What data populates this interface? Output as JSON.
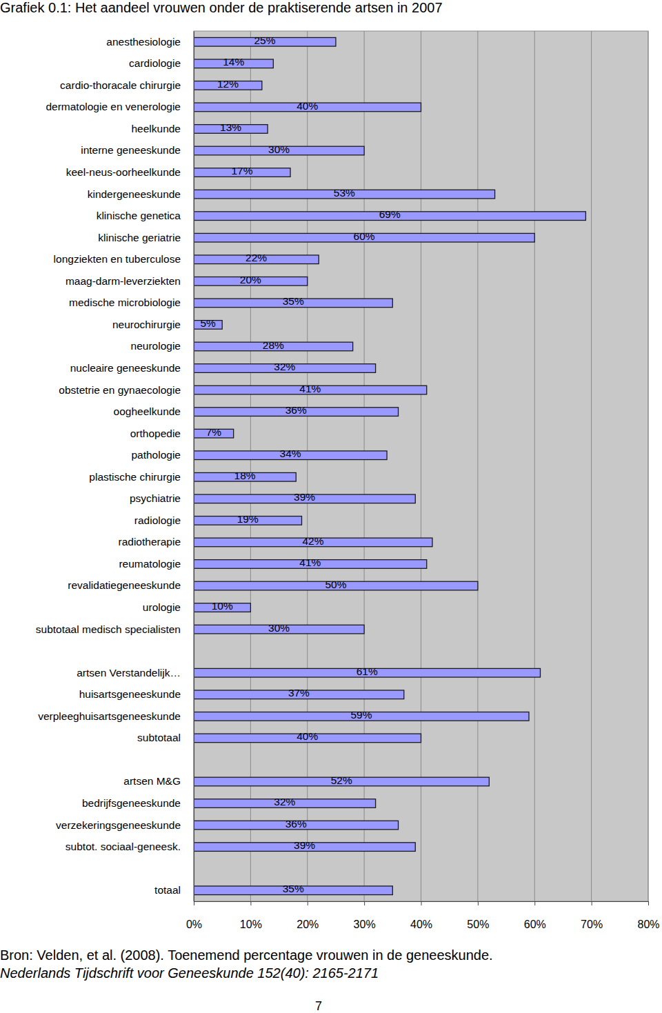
{
  "chart_data": {
    "type": "bar",
    "orientation": "horizontal",
    "title": "Grafiek 0.1: Het aandeel vrouwen onder de praktiserende artsen in 2007",
    "categories": [
      "anesthesiologie",
      "cardiologie",
      "cardio-thoracale chirurgie",
      "dermatologie en venerologie",
      "heelkunde",
      "interne geneeskunde",
      "keel-neus-oorheelkunde",
      "kindergeneeskunde",
      "klinische genetica",
      "klinische geriatrie",
      "longziekten en tuberculose",
      "maag-darm-leverziekten",
      "medische microbiologie",
      "neurochirurgie",
      "neurologie",
      "nucleaire geneeskunde",
      "obstetrie en gynaecologie",
      "oogheelkunde",
      "orthopedie",
      "pathologie",
      "plastische chirurgie",
      "psychiatrie",
      "radiologie",
      "radiotherapie",
      "reumatologie",
      "revalidatiegeneeskunde",
      "urologie",
      "subtotaal medisch specialisten",
      null,
      "artsen Verstandelijk…",
      "huisartsgeneeskunde",
      "verpleeghuisartsgeneeskunde",
      "subtotaal",
      null,
      "artsen M&G",
      "bedrijfsgeneeskunde",
      "verzekeringsgeneeskunde",
      "subtot.  sociaal-geneesk.",
      null,
      "totaal"
    ],
    "values": [
      25,
      14,
      12,
      40,
      13,
      30,
      17,
      53,
      69,
      60,
      22,
      20,
      35,
      5,
      28,
      32,
      41,
      36,
      7,
      34,
      18,
      39,
      19,
      42,
      41,
      50,
      10,
      30,
      null,
      61,
      37,
      59,
      40,
      null,
      52,
      32,
      36,
      39,
      null,
      35
    ],
    "value_labels": [
      "25%",
      "14%",
      "12%",
      "40%",
      "13%",
      "30%",
      "17%",
      "53%",
      "69%",
      "60%",
      "22%",
      "20%",
      "35%",
      "5%",
      "28%",
      "32%",
      "41%",
      "36%",
      "7%",
      "34%",
      "18%",
      "39%",
      "19%",
      "42%",
      "41%",
      "50%",
      "10%",
      "30%",
      null,
      "61%",
      "37%",
      "59%",
      "40%",
      null,
      "52%",
      "32%",
      "36%",
      "39%",
      null,
      "35%"
    ],
    "color": "#9999ff",
    "data_labels": true,
    "grid": true,
    "xlim": [
      0,
      80
    ],
    "xticks": [
      {
        "value": 0,
        "label": "0%"
      },
      {
        "value": 10,
        "label": "10%"
      },
      {
        "value": 20,
        "label": "20%"
      },
      {
        "value": 30,
        "label": "30%"
      },
      {
        "value": 40,
        "label": "40%"
      },
      {
        "value": 50,
        "label": "50%"
      },
      {
        "value": 60,
        "label": "60%"
      },
      {
        "value": 70,
        "label": "70%"
      },
      {
        "value": 80,
        "label": "80%"
      }
    ],
    "annotations": [
      "Bron: Velden, et al. (2008).  Toenemend percentage vrouwen in de geneeskunde.",
      "Nederlands Tijdschrift voor Geneeskunde 152(40): 2165-2171",
      "7"
    ]
  }
}
